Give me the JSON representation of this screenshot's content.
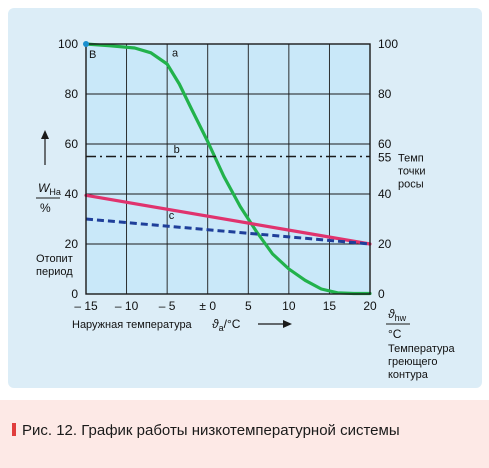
{
  "chart_data": {
    "type": "line",
    "x": [
      -15,
      -10,
      -5,
      0,
      5,
      10,
      15,
      20
    ],
    "xlim": [
      -15,
      20
    ],
    "ylim": [
      0,
      100
    ],
    "xticks": [
      "– 15",
      "– 10",
      "– 5",
      "± 0",
      "5",
      "10",
      "15",
      "20"
    ],
    "yticks_left": [
      "0",
      "20",
      "40",
      "60",
      "80",
      "100"
    ],
    "yticks_right": [
      "0",
      "20",
      "40",
      "60",
      "80",
      "100"
    ],
    "ylabel_left": {
      "main": "W",
      "sub": "На",
      "den": "%"
    },
    "ylabel_right": {
      "main": "ϑ",
      "sub": "hw",
      "den": "°C",
      "desc": [
        "Температура",
        "греющего",
        "контура"
      ]
    },
    "xlabel": {
      "text": "Наружная температура",
      "var": "ϑ",
      "sub": "a",
      "unit": "/°C"
    },
    "left_annotation": [
      "Отопит",
      "период"
    ],
    "point_label": "B",
    "dew_point": {
      "value": 55,
      "label": "55",
      "text": [
        "Темп",
        "точки",
        "росы"
      ]
    },
    "series": [
      {
        "id": "a",
        "label": "a",
        "color": "#22b24c",
        "style": "solid",
        "points": [
          [
            -15,
            100
          ],
          [
            -12,
            99.3
          ],
          [
            -9,
            98.4
          ],
          [
            -7,
            96.5
          ],
          [
            -5,
            92
          ],
          [
            -3.5,
            84
          ],
          [
            -2,
            74
          ],
          [
            0,
            61
          ],
          [
            2,
            47
          ],
          [
            4,
            35
          ],
          [
            5,
            30
          ],
          [
            6,
            25
          ],
          [
            8,
            16
          ],
          [
            10,
            10
          ],
          [
            12,
            5.5
          ],
          [
            14,
            2
          ],
          [
            16,
            0.5
          ],
          [
            18,
            0.2
          ],
          [
            20,
            0.2
          ]
        ]
      },
      {
        "id": "b",
        "label": "b",
        "color": "#1a1a1a",
        "style": "dashdot",
        "points": [
          [
            -15,
            55
          ],
          [
            20,
            55
          ]
        ]
      },
      {
        "id": "c_red",
        "label": "",
        "color": "#e0336e",
        "style": "solid",
        "points": [
          [
            -15,
            39.5
          ],
          [
            20,
            20
          ]
        ]
      },
      {
        "id": "c",
        "label": "c",
        "color": "#1f3f9a",
        "style": "dashed",
        "points": [
          [
            -15,
            30
          ],
          [
            20,
            20
          ]
        ]
      }
    ],
    "grid": true,
    "background": "#ffffff",
    "plot_fill": "#c9e8f9",
    "grid_color": "#1a1a1a",
    "point_b_color": "#1a8fcf",
    "dew_color": "#1a8fcf"
  },
  "caption": "Рис. 12. График работы низкотемпературной системы",
  "caption_color": "#e03d3d"
}
